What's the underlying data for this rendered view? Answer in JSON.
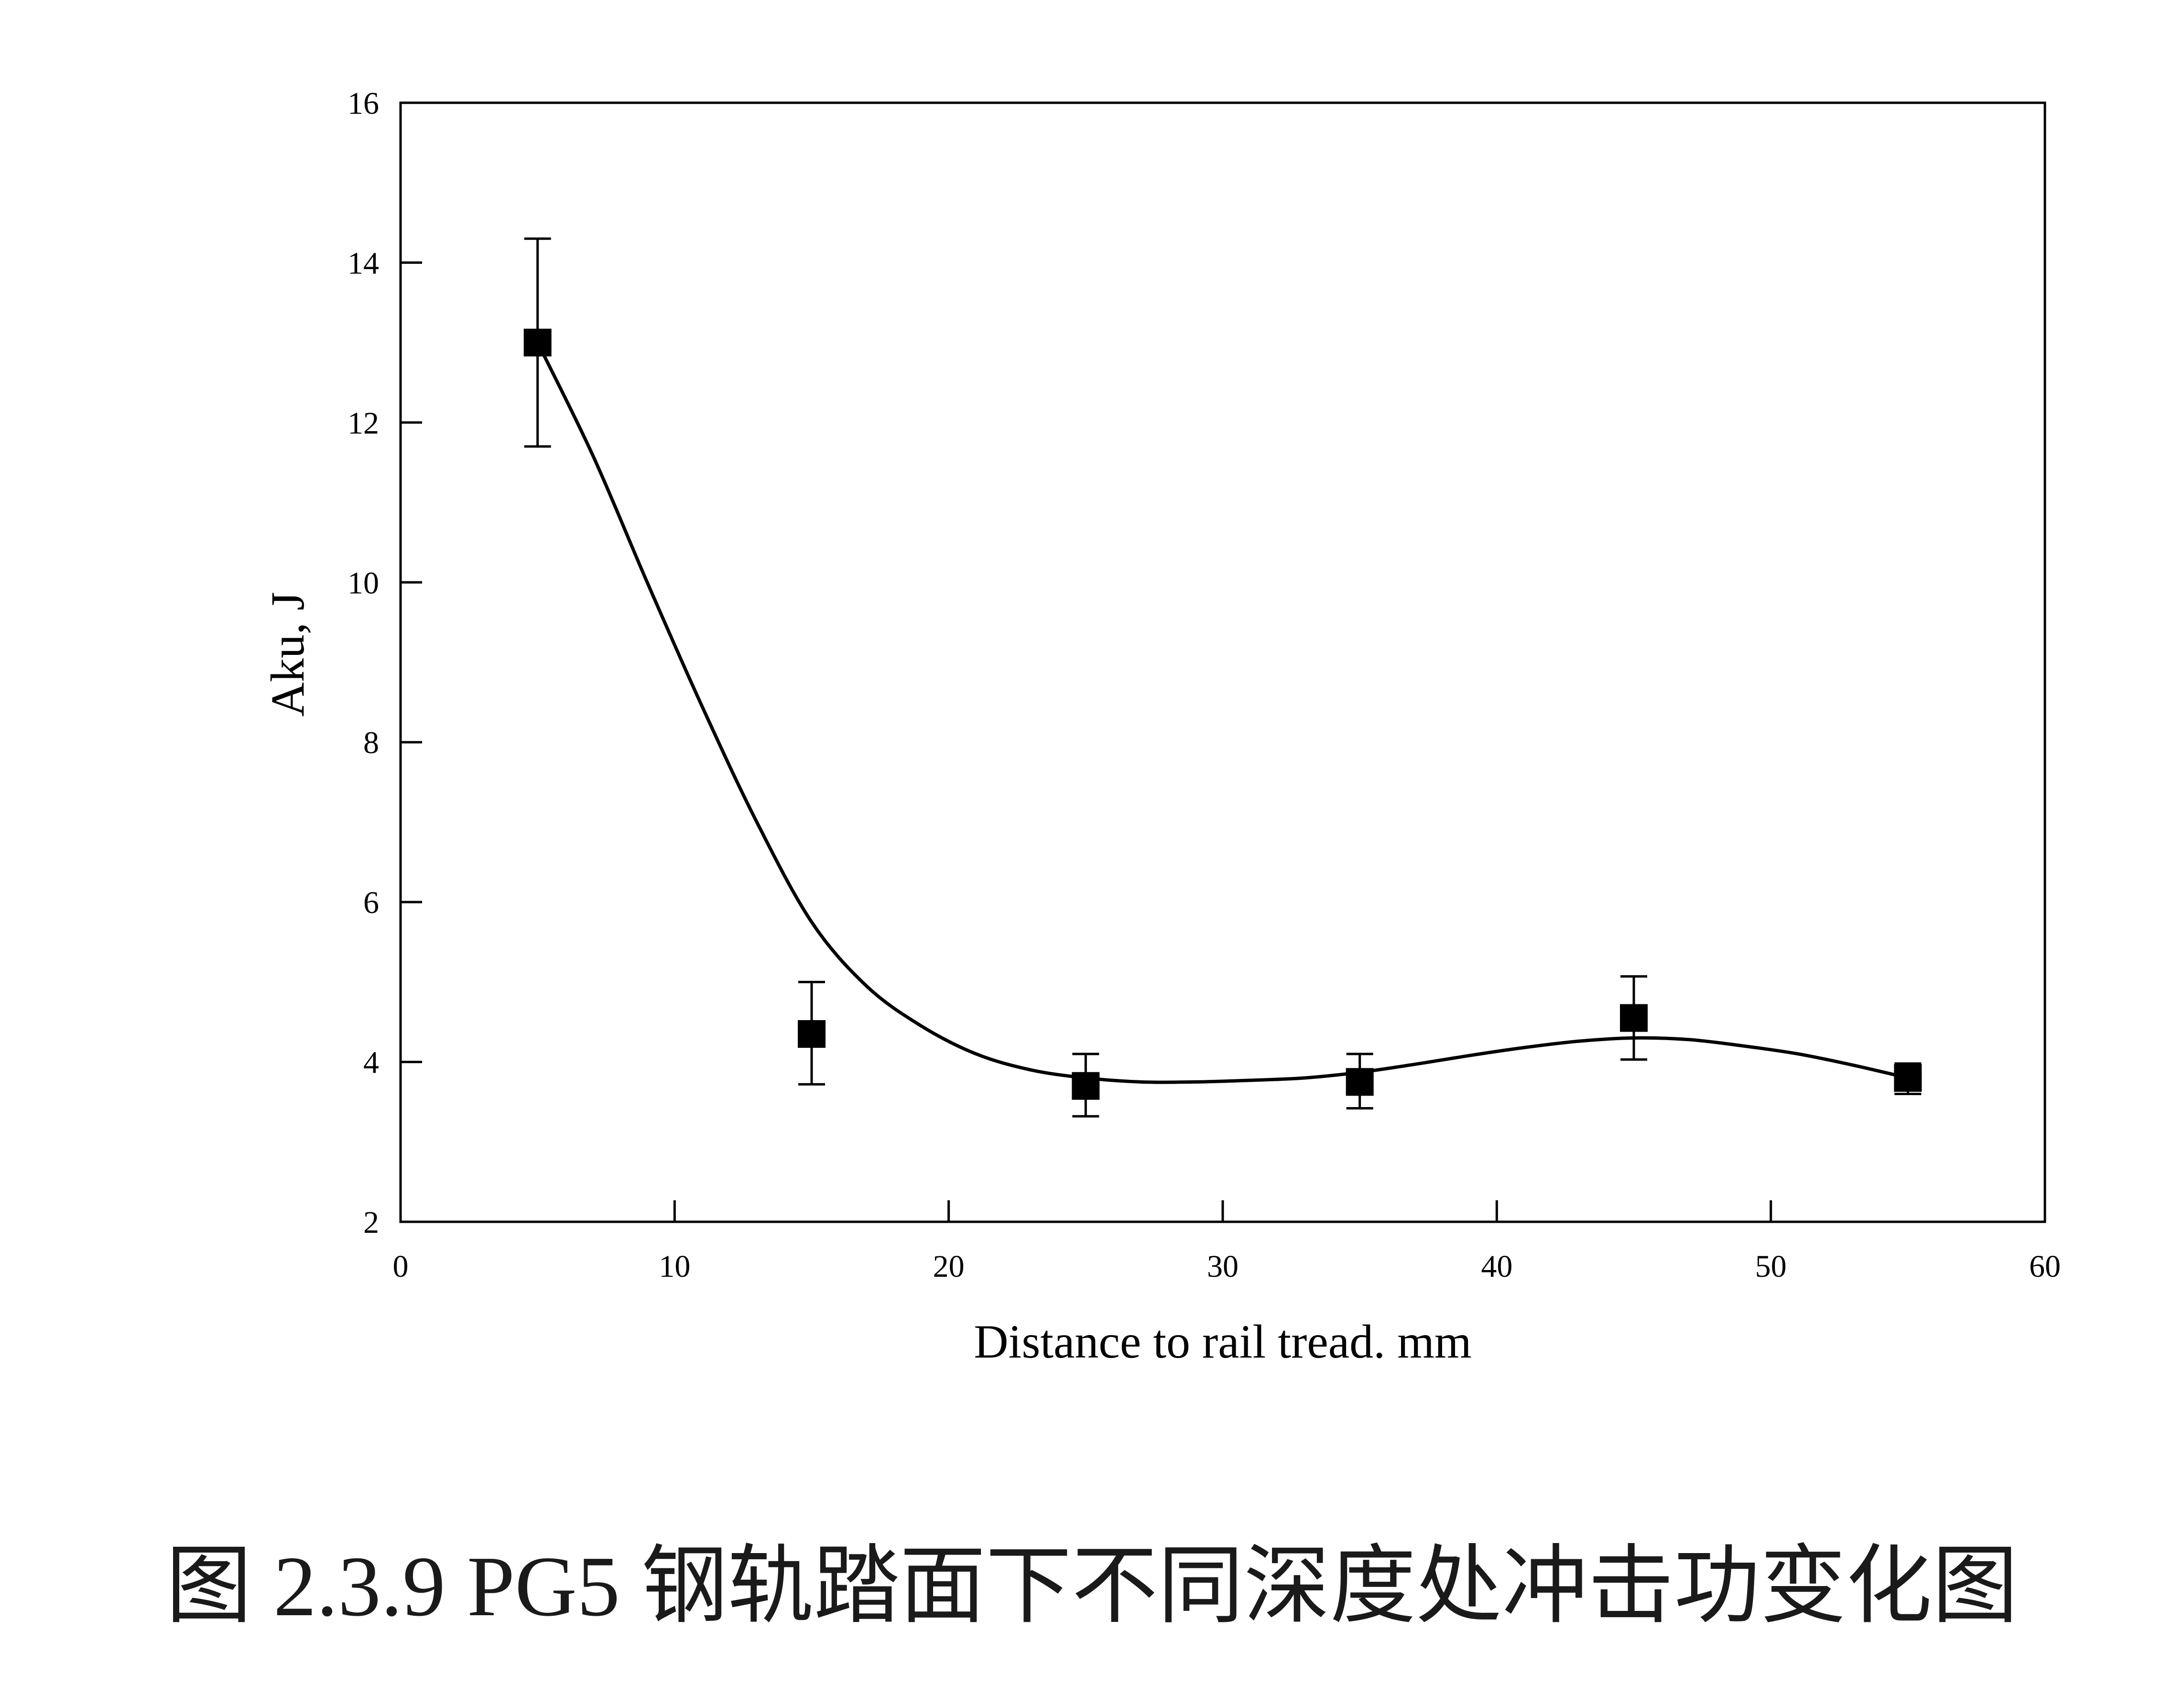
{
  "caption": "图 2.3.9 PG5 钢轨踏面下不同深度处冲击功变化图",
  "chart_data": {
    "type": "scatter",
    "xlabel": "Distance to rail tread. mm",
    "ylabel": "Aku,  J",
    "xlim": [
      0,
      60
    ],
    "ylim": [
      2,
      16
    ],
    "xticks": [
      0,
      10,
      20,
      30,
      40,
      50,
      60
    ],
    "yticks": [
      2,
      4,
      6,
      8,
      10,
      12,
      14,
      16
    ],
    "grid": false,
    "series": [
      {
        "marker": "square",
        "x": [
          5,
          15,
          25,
          35,
          45,
          55
        ],
        "y": [
          13.0,
          4.35,
          3.7,
          3.75,
          4.55,
          3.8
        ],
        "err_low": [
          11.7,
          3.72,
          3.32,
          3.42,
          4.03,
          3.6
        ],
        "err_high": [
          14.3,
          5.0,
          4.1,
          4.1,
          5.07,
          3.98
        ]
      }
    ],
    "fit_curve": {
      "x": [
        5,
        7,
        9,
        11,
        13,
        15,
        17,
        19,
        21,
        23,
        25,
        27,
        29,
        31,
        33,
        35,
        37,
        39,
        41,
        43,
        45,
        47,
        49,
        51,
        53,
        55
      ],
      "y": [
        13.0,
        11.6,
        10.0,
        8.45,
        7.0,
        5.75,
        4.95,
        4.45,
        4.1,
        3.9,
        3.8,
        3.75,
        3.75,
        3.77,
        3.8,
        3.87,
        3.97,
        4.08,
        4.18,
        4.26,
        4.3,
        4.28,
        4.2,
        4.1,
        3.96,
        3.8
      ]
    }
  }
}
